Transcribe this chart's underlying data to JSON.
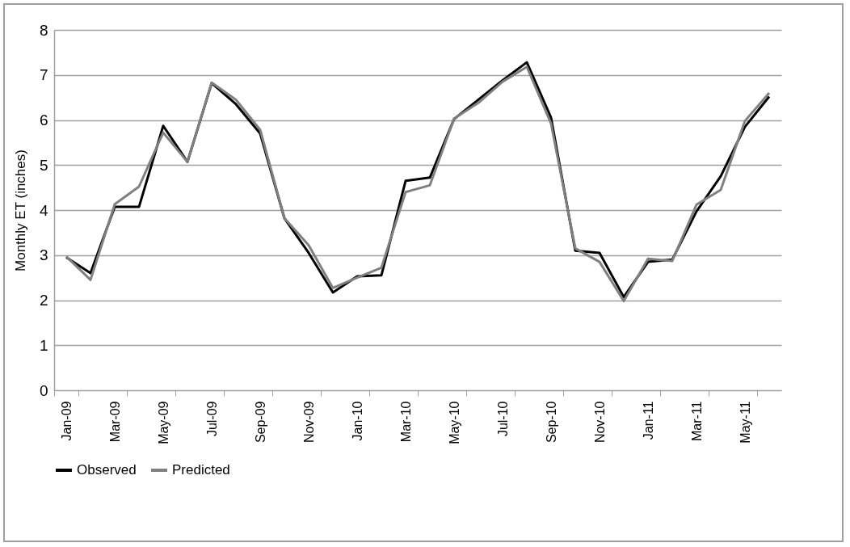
{
  "chart_data": {
    "type": "line",
    "ylabel": "Monthly ET (inches)",
    "categories": [
      "Jan-09",
      null,
      "Mar-09",
      null,
      "May-09",
      null,
      "Jul-09",
      null,
      "Sep-09",
      null,
      "Nov-09",
      null,
      "Jan-10",
      null,
      "Mar-10",
      null,
      "May-10",
      null,
      "Jul-10",
      null,
      "Sep-10",
      null,
      "Nov-10",
      null,
      "Jan-11",
      null,
      "Mar-11",
      null,
      "May-11",
      null
    ],
    "series": [
      {
        "name": "Observed",
        "color": "#000000",
        "values": [
          2.95,
          2.6,
          4.07,
          4.07,
          5.87,
          5.07,
          6.82,
          6.35,
          5.7,
          3.82,
          3.05,
          2.17,
          2.53,
          2.55,
          4.65,
          4.72,
          6.02,
          6.45,
          6.88,
          7.28,
          6.05,
          3.1,
          3.05,
          2.07,
          2.85,
          2.9,
          3.97,
          4.75,
          5.85,
          6.52
        ]
      },
      {
        "name": "Predicted",
        "color": "#808080",
        "values": [
          2.97,
          2.45,
          4.13,
          4.52,
          5.72,
          5.07,
          6.83,
          6.45,
          5.78,
          3.82,
          3.22,
          2.27,
          2.5,
          2.72,
          4.4,
          4.55,
          6.03,
          6.38,
          6.85,
          7.18,
          5.92,
          3.15,
          2.85,
          1.98,
          2.92,
          2.87,
          4.12,
          4.45,
          5.98,
          6.6
        ]
      }
    ],
    "ylim": [
      0,
      8
    ],
    "yticks": [
      0,
      1,
      2,
      3,
      4,
      5,
      6,
      7,
      8
    ],
    "grid": "y",
    "legend": "bottom",
    "marker": "none",
    "line_style": "solid"
  }
}
